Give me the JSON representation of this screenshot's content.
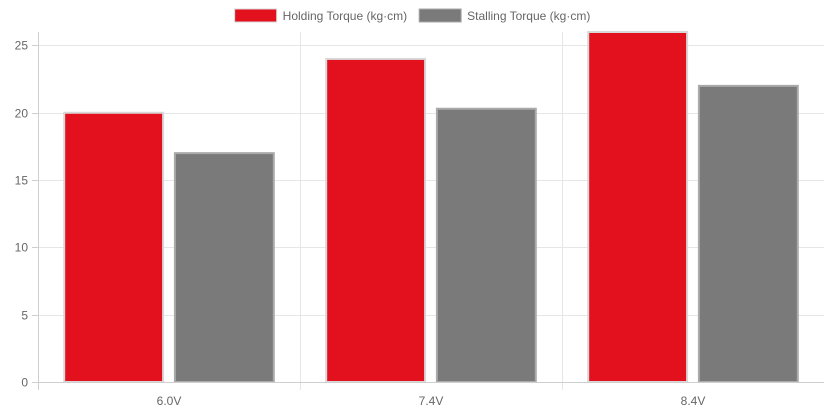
{
  "chart_data": {
    "type": "bar",
    "categories": [
      "6.0V",
      "7.4V",
      "8.4V"
    ],
    "series": [
      {
        "name": "Holding Torque (kg·cm)",
        "values": [
          20,
          24,
          26
        ],
        "color": "#e3101e",
        "border": "#d8d8d8"
      },
      {
        "name": "Stalling Torque (kg·cm)",
        "values": [
          17,
          20.3,
          22
        ],
        "color": "#7a7a7a",
        "border": "#aaaaaa"
      }
    ],
    "yticks": [
      0,
      5,
      10,
      15,
      20,
      25
    ],
    "ylim": [
      0,
      26
    ],
    "grid": true,
    "legend_position": "top"
  }
}
